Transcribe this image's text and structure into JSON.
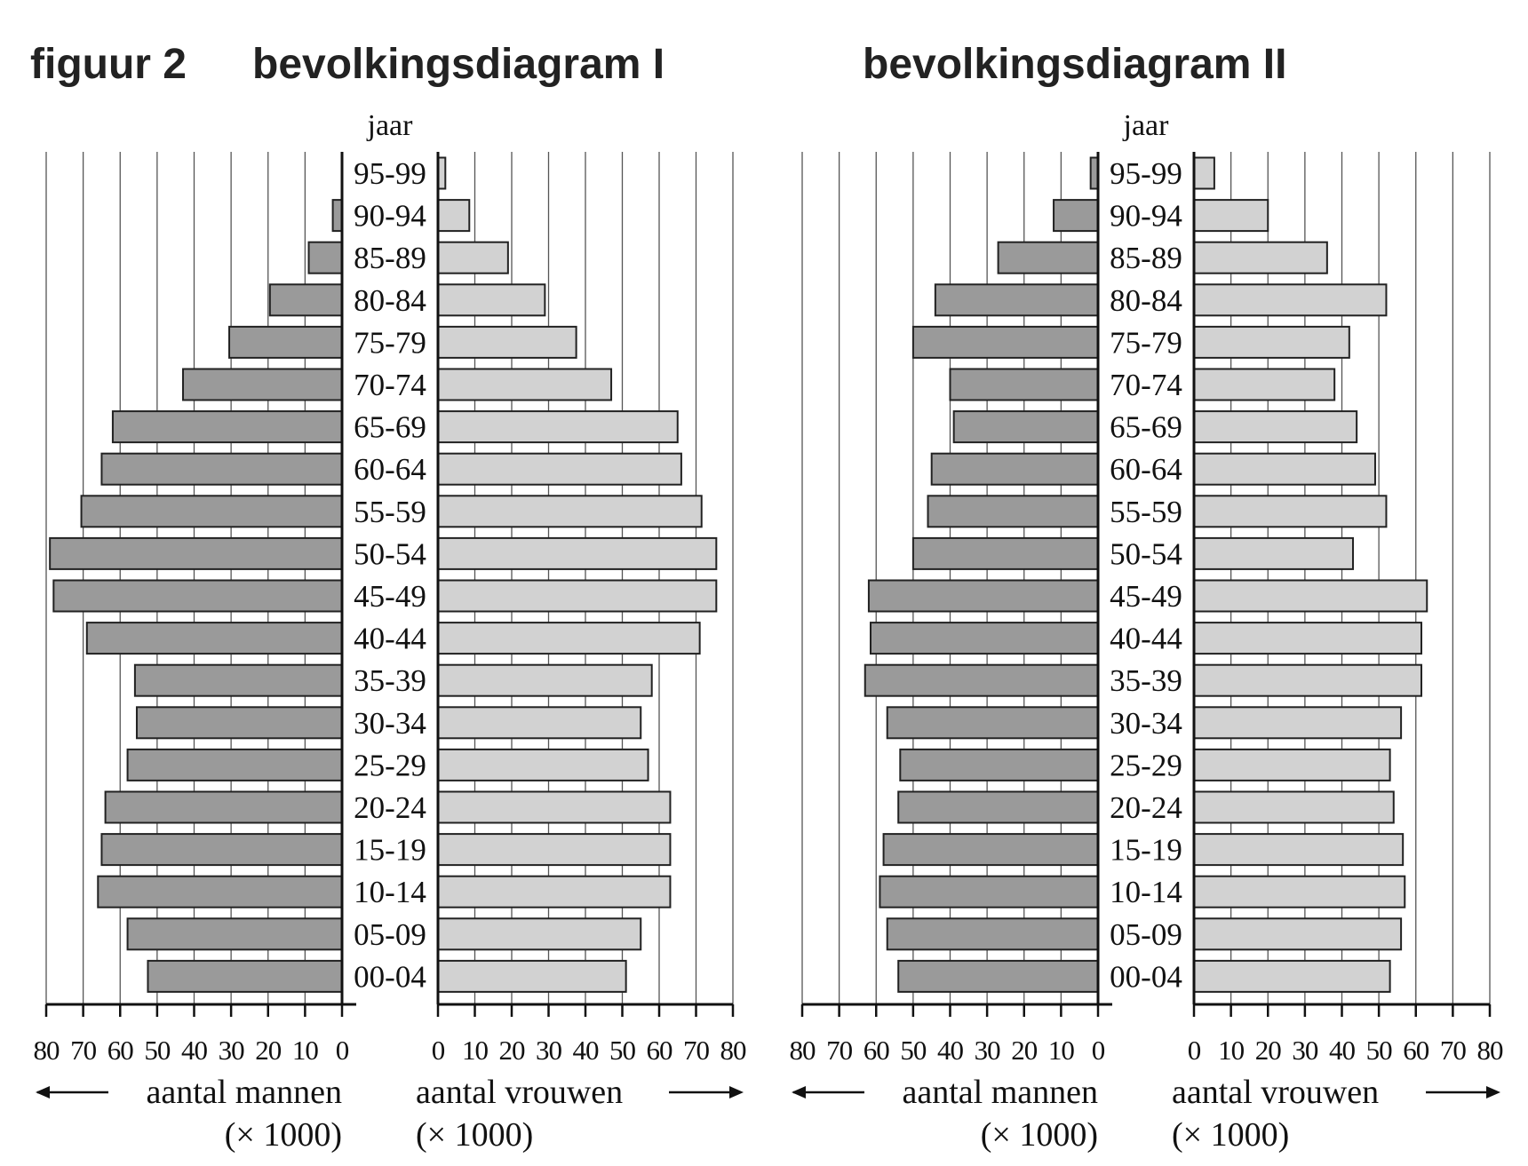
{
  "figure_label": "figuur 2",
  "chart_data": [
    {
      "type": "bar",
      "title": "bevolkingsdiagram I",
      "category_label": "jaar",
      "categories": [
        "95-99",
        "90-94",
        "85-89",
        "80-84",
        "75-79",
        "70-74",
        "65-69",
        "60-64",
        "55-59",
        "50-54",
        "45-49",
        "40-44",
        "35-39",
        "30-34",
        "25-29",
        "20-24",
        "15-19",
        "10-14",
        "05-09",
        "00-04"
      ],
      "xlabel_left": "aantal mannen",
      "xlabel_right": "aantal vrouwen",
      "unit": "(× 1000)",
      "xlim": [
        0,
        80
      ],
      "ticks": [
        0,
        10,
        20,
        30,
        40,
        50,
        60,
        70,
        80
      ],
      "grid": true,
      "series": [
        {
          "name": "aantal mannen",
          "color": "#9a9a9a",
          "values": [
            0,
            2.5,
            9,
            19.5,
            30.5,
            43,
            62,
            65,
            70.5,
            79,
            78,
            69,
            56,
            55.5,
            58,
            64,
            65,
            66,
            58,
            52.5
          ]
        },
        {
          "name": "aantal vrouwen",
          "color": "#d2d2d2",
          "values": [
            2,
            8.5,
            19,
            29,
            37.5,
            47,
            65,
            66,
            71.5,
            75.5,
            75.5,
            71,
            58,
            55,
            57,
            63,
            63,
            63,
            55,
            51
          ]
        }
      ]
    },
    {
      "type": "bar",
      "title": "bevolkingsdiagram II",
      "category_label": "jaar",
      "categories": [
        "95-99",
        "90-94",
        "85-89",
        "80-84",
        "75-79",
        "70-74",
        "65-69",
        "60-64",
        "55-59",
        "50-54",
        "45-49",
        "40-44",
        "35-39",
        "30-34",
        "25-29",
        "20-24",
        "15-19",
        "10-14",
        "05-09",
        "00-04"
      ],
      "xlabel_left": "aantal mannen",
      "xlabel_right": "aantal vrouwen",
      "unit": "(× 1000)",
      "xlim": [
        0,
        80
      ],
      "ticks": [
        0,
        10,
        20,
        30,
        40,
        50,
        60,
        70,
        80
      ],
      "grid": true,
      "series": [
        {
          "name": "aantal mannen",
          "color": "#9a9a9a",
          "values": [
            2,
            12,
            27,
            44,
            50,
            40,
            39,
            45,
            46,
            50,
            62,
            61.5,
            63,
            57,
            53.5,
            54,
            58,
            59,
            57,
            54
          ]
        },
        {
          "name": "aantal vrouwen",
          "color": "#d2d2d2",
          "values": [
            5.5,
            20,
            36,
            52,
            42,
            38,
            44,
            49,
            52,
            43,
            63,
            61.5,
            61.5,
            56,
            53,
            54,
            56.5,
            57,
            56,
            53
          ]
        }
      ]
    }
  ]
}
